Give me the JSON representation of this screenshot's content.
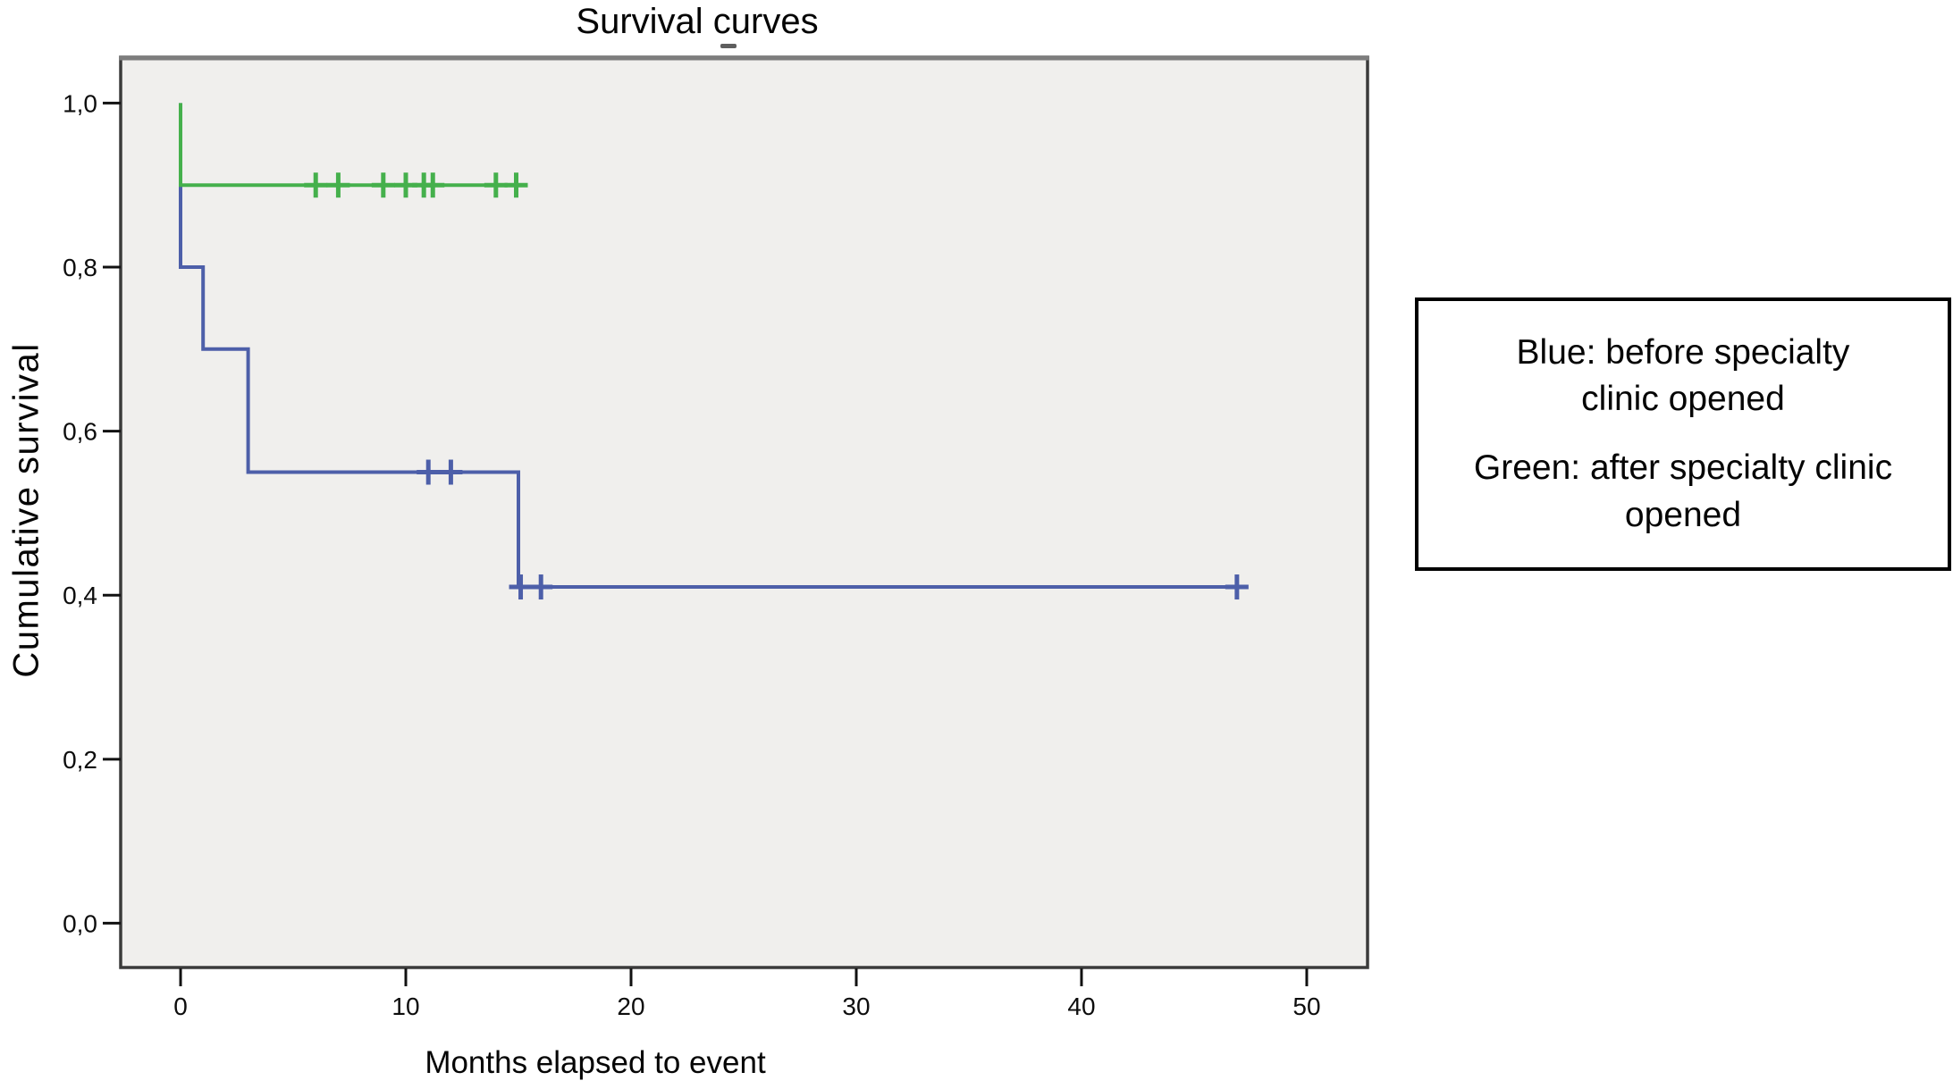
{
  "figure": {
    "title": "Survival curves",
    "x_axis": {
      "label": "Months elapsed to event"
    },
    "y_axis": {
      "label": "Cumulative survival"
    },
    "legend": {
      "lines": [
        "Blue: before specialty clinic opened",
        "Green: after specialty clinic opened"
      ]
    }
  },
  "chart_data": {
    "type": "line",
    "subtype": "kaplan-meier-step",
    "title": "Survival curves",
    "xlabel": "Months elapsed to event",
    "ylabel": "Cumulative survival",
    "xlim": [
      -2.66,
      52.7
    ],
    "ylim": [
      -0.054,
      1.056
    ],
    "x_ticks": [
      0,
      10,
      20,
      30,
      40,
      50
    ],
    "y_ticks": [
      0.0,
      0.2,
      0.4,
      0.6,
      0.8,
      1.0
    ],
    "y_tick_labels": [
      "0,0",
      "0,2",
      "0,4",
      "0,6",
      "0,8",
      "1,0"
    ],
    "decimal_separator": ",",
    "grid": false,
    "plot_background": "#f0efed",
    "border_color": "#3b3b3b",
    "border_top_color": "#7d7d7d",
    "legend_position": "right",
    "series": [
      {
        "name": "before specialty clinic opened",
        "color": "#4d5fa9",
        "steps": [
          [
            0,
            1.0
          ],
          [
            0,
            0.8
          ],
          [
            1,
            0.8
          ],
          [
            1,
            0.7
          ],
          [
            3,
            0.7
          ],
          [
            3,
            0.55
          ],
          [
            15,
            0.55
          ],
          [
            15,
            0.41
          ],
          [
            46.9,
            0.41
          ]
        ],
        "censored": [
          [
            11,
            0.55
          ],
          [
            12,
            0.55
          ],
          [
            15.1,
            0.41
          ],
          [
            16,
            0.41
          ],
          [
            46.9,
            0.41
          ]
        ]
      },
      {
        "name": "after specialty clinic opened",
        "color": "#45b04c",
        "steps": [
          [
            0,
            1.0
          ],
          [
            0,
            0.9
          ],
          [
            15.2,
            0.9
          ]
        ],
        "censored": [
          [
            6,
            0.9
          ],
          [
            7,
            0.9
          ],
          [
            9,
            0.9
          ],
          [
            10,
            0.9
          ],
          [
            10.8,
            0.9
          ],
          [
            11.2,
            0.9
          ],
          [
            14,
            0.9
          ],
          [
            14.9,
            0.9
          ]
        ]
      }
    ]
  }
}
